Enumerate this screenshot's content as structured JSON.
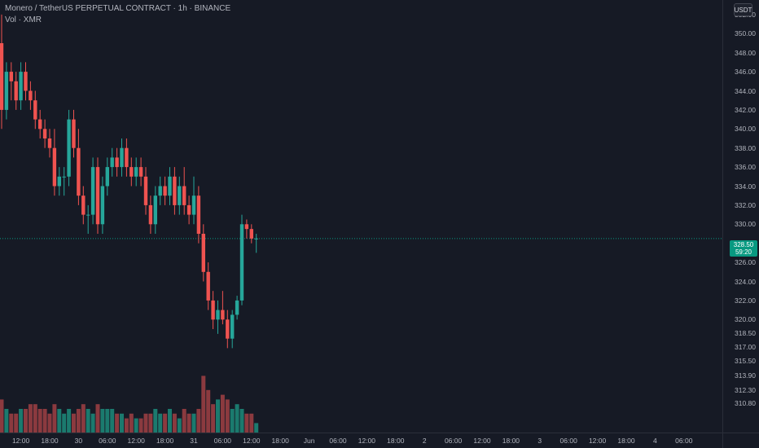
{
  "legend": {
    "title": "Monero / TetherUS PERPETUAL CONTRACT · 1h · BINANCE",
    "volume": "Vol · XMR"
  },
  "currency_button": "USDT",
  "current_price": {
    "price": "328.50",
    "countdown": "59:20",
    "value": 328.5
  },
  "colors": {
    "up": "#26a69a",
    "down": "#ef5350",
    "up_vol": "#1b7a6e",
    "down_vol": "#8b3a3f",
    "last_price_line": "#089981"
  },
  "price_axis": {
    "ticks": [
      {
        "label": "352.00",
        "v": 352
      },
      {
        "label": "350.00",
        "v": 350
      },
      {
        "label": "348.00",
        "v": 348
      },
      {
        "label": "346.00",
        "v": 346
      },
      {
        "label": "344.00",
        "v": 344
      },
      {
        "label": "342.00",
        "v": 342
      },
      {
        "label": "340.00",
        "v": 340
      },
      {
        "label": "338.00",
        "v": 338
      },
      {
        "label": "336.00",
        "v": 336
      },
      {
        "label": "334.00",
        "v": 334
      },
      {
        "label": "332.00",
        "v": 332
      },
      {
        "label": "330.00",
        "v": 330
      },
      {
        "label": "326.00",
        "v": 326
      },
      {
        "label": "324.00",
        "v": 324
      },
      {
        "label": "322.00",
        "v": 322
      },
      {
        "label": "320.00",
        "v": 320
      },
      {
        "label": "318.50",
        "v": 318.5
      },
      {
        "label": "317.00",
        "v": 317
      },
      {
        "label": "315.50",
        "v": 315.5
      },
      {
        "label": "313.90",
        "v": 313.9
      },
      {
        "label": "312.30",
        "v": 312.3
      },
      {
        "label": "310.80",
        "v": 310.8
      }
    ]
  },
  "time_axis": {
    "ticks": [
      {
        "label": "12:00",
        "i": 4
      },
      {
        "label": "18:00",
        "i": 10
      },
      {
        "label": "30",
        "i": 16
      },
      {
        "label": "06:00",
        "i": 22
      },
      {
        "label": "12:00",
        "i": 28
      },
      {
        "label": "18:00",
        "i": 34
      },
      {
        "label": "31",
        "i": 40
      },
      {
        "label": "06:00",
        "i": 46
      },
      {
        "label": "12:00",
        "i": 52
      },
      {
        "label": "18:00",
        "i": 58
      },
      {
        "label": "Jun",
        "i": 64
      },
      {
        "label": "06:00",
        "i": 70
      },
      {
        "label": "12:00",
        "i": 76
      },
      {
        "label": "18:00",
        "i": 82
      },
      {
        "label": "2",
        "i": 88
      },
      {
        "label": "06:00",
        "i": 94
      },
      {
        "label": "12:00",
        "i": 100
      },
      {
        "label": "18:00",
        "i": 106
      },
      {
        "label": "3",
        "i": 112
      },
      {
        "label": "06:00",
        "i": 118
      },
      {
        "label": "12:00",
        "i": 124
      },
      {
        "label": "18:00",
        "i": 130
      },
      {
        "label": "4",
        "i": 136
      },
      {
        "label": "06:00",
        "i": 142
      }
    ]
  },
  "chart_data": {
    "type": "candlestick",
    "symbol": "Monero / TetherUS PERPETUAL CONTRACT",
    "interval": "1h",
    "exchange": "BINANCE",
    "candles": [
      {
        "o": 349,
        "h": 352,
        "l": 340,
        "c": 342
      },
      {
        "o": 342,
        "h": 347,
        "l": 341,
        "c": 346
      },
      {
        "o": 346,
        "h": 347,
        "l": 343,
        "c": 345
      },
      {
        "o": 345,
        "h": 346,
        "l": 342,
        "c": 343
      },
      {
        "o": 343,
        "h": 347,
        "l": 342,
        "c": 346
      },
      {
        "o": 346,
        "h": 347,
        "l": 343,
        "c": 344
      },
      {
        "o": 344,
        "h": 345,
        "l": 342,
        "c": 343
      },
      {
        "o": 343,
        "h": 344,
        "l": 340,
        "c": 341
      },
      {
        "o": 341,
        "h": 342,
        "l": 339,
        "c": 340
      },
      {
        "o": 340,
        "h": 341,
        "l": 338,
        "c": 339
      },
      {
        "o": 339,
        "h": 340,
        "l": 337,
        "c": 338
      },
      {
        "o": 338,
        "h": 340,
        "l": 333,
        "c": 334
      },
      {
        "o": 334,
        "h": 336,
        "l": 333,
        "c": 335
      },
      {
        "o": 335,
        "h": 336,
        "l": 333,
        "c": 335
      },
      {
        "o": 335,
        "h": 342,
        "l": 334,
        "c": 341
      },
      {
        "o": 341,
        "h": 342,
        "l": 337,
        "c": 338
      },
      {
        "o": 338,
        "h": 340,
        "l": 332,
        "c": 333
      },
      {
        "o": 333,
        "h": 334,
        "l": 330,
        "c": 331
      },
      {
        "o": 331,
        "h": 332,
        "l": 329,
        "c": 331
      },
      {
        "o": 331,
        "h": 337,
        "l": 330,
        "c": 336
      },
      {
        "o": 336,
        "h": 337,
        "l": 329,
        "c": 330
      },
      {
        "o": 330,
        "h": 335,
        "l": 329,
        "c": 334
      },
      {
        "o": 334,
        "h": 337,
        "l": 333,
        "c": 336
      },
      {
        "o": 336,
        "h": 338,
        "l": 335,
        "c": 337
      },
      {
        "o": 337,
        "h": 338,
        "l": 335,
        "c": 336
      },
      {
        "o": 336,
        "h": 339,
        "l": 335,
        "c": 338
      },
      {
        "o": 338,
        "h": 339,
        "l": 335,
        "c": 336
      },
      {
        "o": 336,
        "h": 337,
        "l": 334,
        "c": 335
      },
      {
        "o": 335,
        "h": 337,
        "l": 334,
        "c": 336
      },
      {
        "o": 336,
        "h": 337,
        "l": 334,
        "c": 335
      },
      {
        "o": 335,
        "h": 336,
        "l": 331,
        "c": 332
      },
      {
        "o": 332,
        "h": 333,
        "l": 329,
        "c": 330
      },
      {
        "o": 330,
        "h": 334,
        "l": 329,
        "c": 333
      },
      {
        "o": 333,
        "h": 335,
        "l": 332,
        "c": 334
      },
      {
        "o": 334,
        "h": 335,
        "l": 332,
        "c": 333
      },
      {
        "o": 333,
        "h": 336,
        "l": 332,
        "c": 335
      },
      {
        "o": 335,
        "h": 336,
        "l": 331,
        "c": 332
      },
      {
        "o": 332,
        "h": 335,
        "l": 331,
        "c": 334
      },
      {
        "o": 334,
        "h": 336,
        "l": 331,
        "c": 332
      },
      {
        "o": 332,
        "h": 333,
        "l": 330,
        "c": 331
      },
      {
        "o": 331,
        "h": 335,
        "l": 330,
        "c": 333
      },
      {
        "o": 333,
        "h": 334,
        "l": 328,
        "c": 329
      },
      {
        "o": 329,
        "h": 330,
        "l": 324,
        "c": 325
      },
      {
        "o": 325,
        "h": 326,
        "l": 321,
        "c": 322
      },
      {
        "o": 322,
        "h": 323,
        "l": 319,
        "c": 320
      },
      {
        "o": 320,
        "h": 322,
        "l": 318.5,
        "c": 321
      },
      {
        "o": 321,
        "h": 323,
        "l": 319.5,
        "c": 320
      },
      {
        "o": 320,
        "h": 321,
        "l": 317,
        "c": 318
      },
      {
        "o": 318,
        "h": 321,
        "l": 317,
        "c": 320.5
      },
      {
        "o": 320.5,
        "h": 322.5,
        "l": 320,
        "c": 322
      },
      {
        "o": 322,
        "h": 331,
        "l": 321.5,
        "c": 330
      },
      {
        "o": 330,
        "h": 330.5,
        "l": 328.5,
        "c": 329.5
      },
      {
        "o": 329.5,
        "h": 330,
        "l": 328,
        "c": 328.5
      },
      {
        "o": 328.5,
        "h": 329,
        "l": 327,
        "c": 328.5
      }
    ],
    "volume": [
      7,
      5,
      4,
      4,
      5,
      5,
      6,
      6,
      5,
      5,
      4,
      6,
      5,
      4,
      5,
      4,
      5,
      6,
      5,
      4,
      6,
      5,
      5,
      5,
      4,
      4,
      3,
      4,
      3,
      3,
      4,
      4,
      5,
      4,
      4,
      5,
      4,
      3,
      5,
      4,
      4,
      5,
      12,
      9,
      6,
      7,
      8,
      7,
      5,
      6,
      5,
      4,
      4,
      2
    ]
  }
}
